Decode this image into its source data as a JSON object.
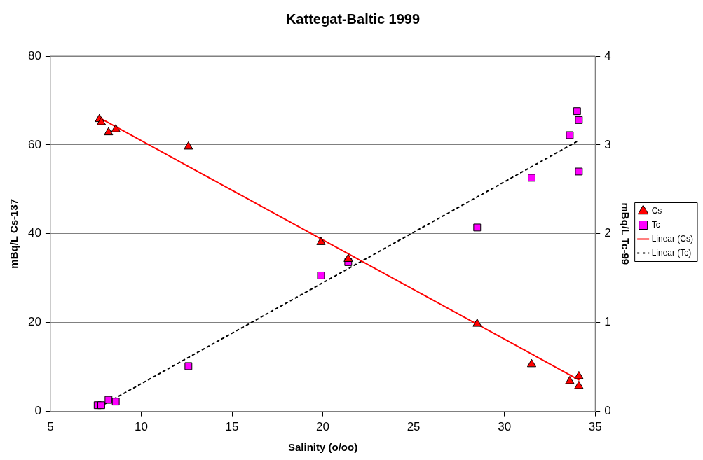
{
  "chart_data": {
    "type": "scatter",
    "title": "Kattegat-Baltic 1999",
    "xlabel": "Salinity (o/oo)",
    "ylabel": "mBq/L Cs-137",
    "y2label": "mBq/L Tc-99",
    "xlim": [
      5,
      35
    ],
    "xticks": [
      5,
      10,
      15,
      20,
      25,
      30,
      35
    ],
    "ylim": [
      0,
      80
    ],
    "yticks": [
      0,
      20,
      40,
      60,
      80
    ],
    "y2lim": [
      0,
      4
    ],
    "y2ticks": [
      0,
      1,
      2,
      3,
      4
    ],
    "grid": "y",
    "legend": "right",
    "series": [
      {
        "name": "Cs",
        "type": "scatter",
        "marker": "triangle",
        "color": "#ff0000",
        "x": [
          7.7,
          7.8,
          8.2,
          8.6,
          12.6,
          19.9,
          21.4,
          28.5,
          31.5,
          33.6,
          34.1,
          34.1
        ],
        "values": [
          65.8,
          65.1,
          62.8,
          63.5,
          59.6,
          38.1,
          34.3,
          19.7,
          10.6,
          6.8,
          7.9,
          5.7
        ]
      },
      {
        "name": "Tc",
        "type": "scatter",
        "marker": "square",
        "color": "#ff00ff",
        "axis": "y2",
        "x": [
          7.6,
          7.8,
          8.2,
          8.6,
          12.6,
          19.9,
          21.4,
          28.5,
          31.5,
          33.6,
          34.0,
          34.1,
          34.1
        ],
        "values": [
          0.07,
          0.07,
          0.13,
          0.11,
          0.51,
          1.53,
          1.68,
          2.07,
          2.63,
          3.11,
          3.38,
          3.28,
          2.7
        ]
      },
      {
        "name": "Linear (Cs)",
        "type": "line",
        "marker": "none",
        "line_style": "solid",
        "color": "#ff0000",
        "x": [
          7.7,
          34.1
        ],
        "values": [
          66.1,
          7.1
        ]
      },
      {
        "name": "Linear (Tc)",
        "type": "line",
        "marker": "none",
        "line_style": "dotted",
        "color": "#000000",
        "axis": "y2",
        "x": [
          7.7,
          34.1
        ],
        "values": [
          0.05,
          3.05
        ]
      }
    ]
  }
}
